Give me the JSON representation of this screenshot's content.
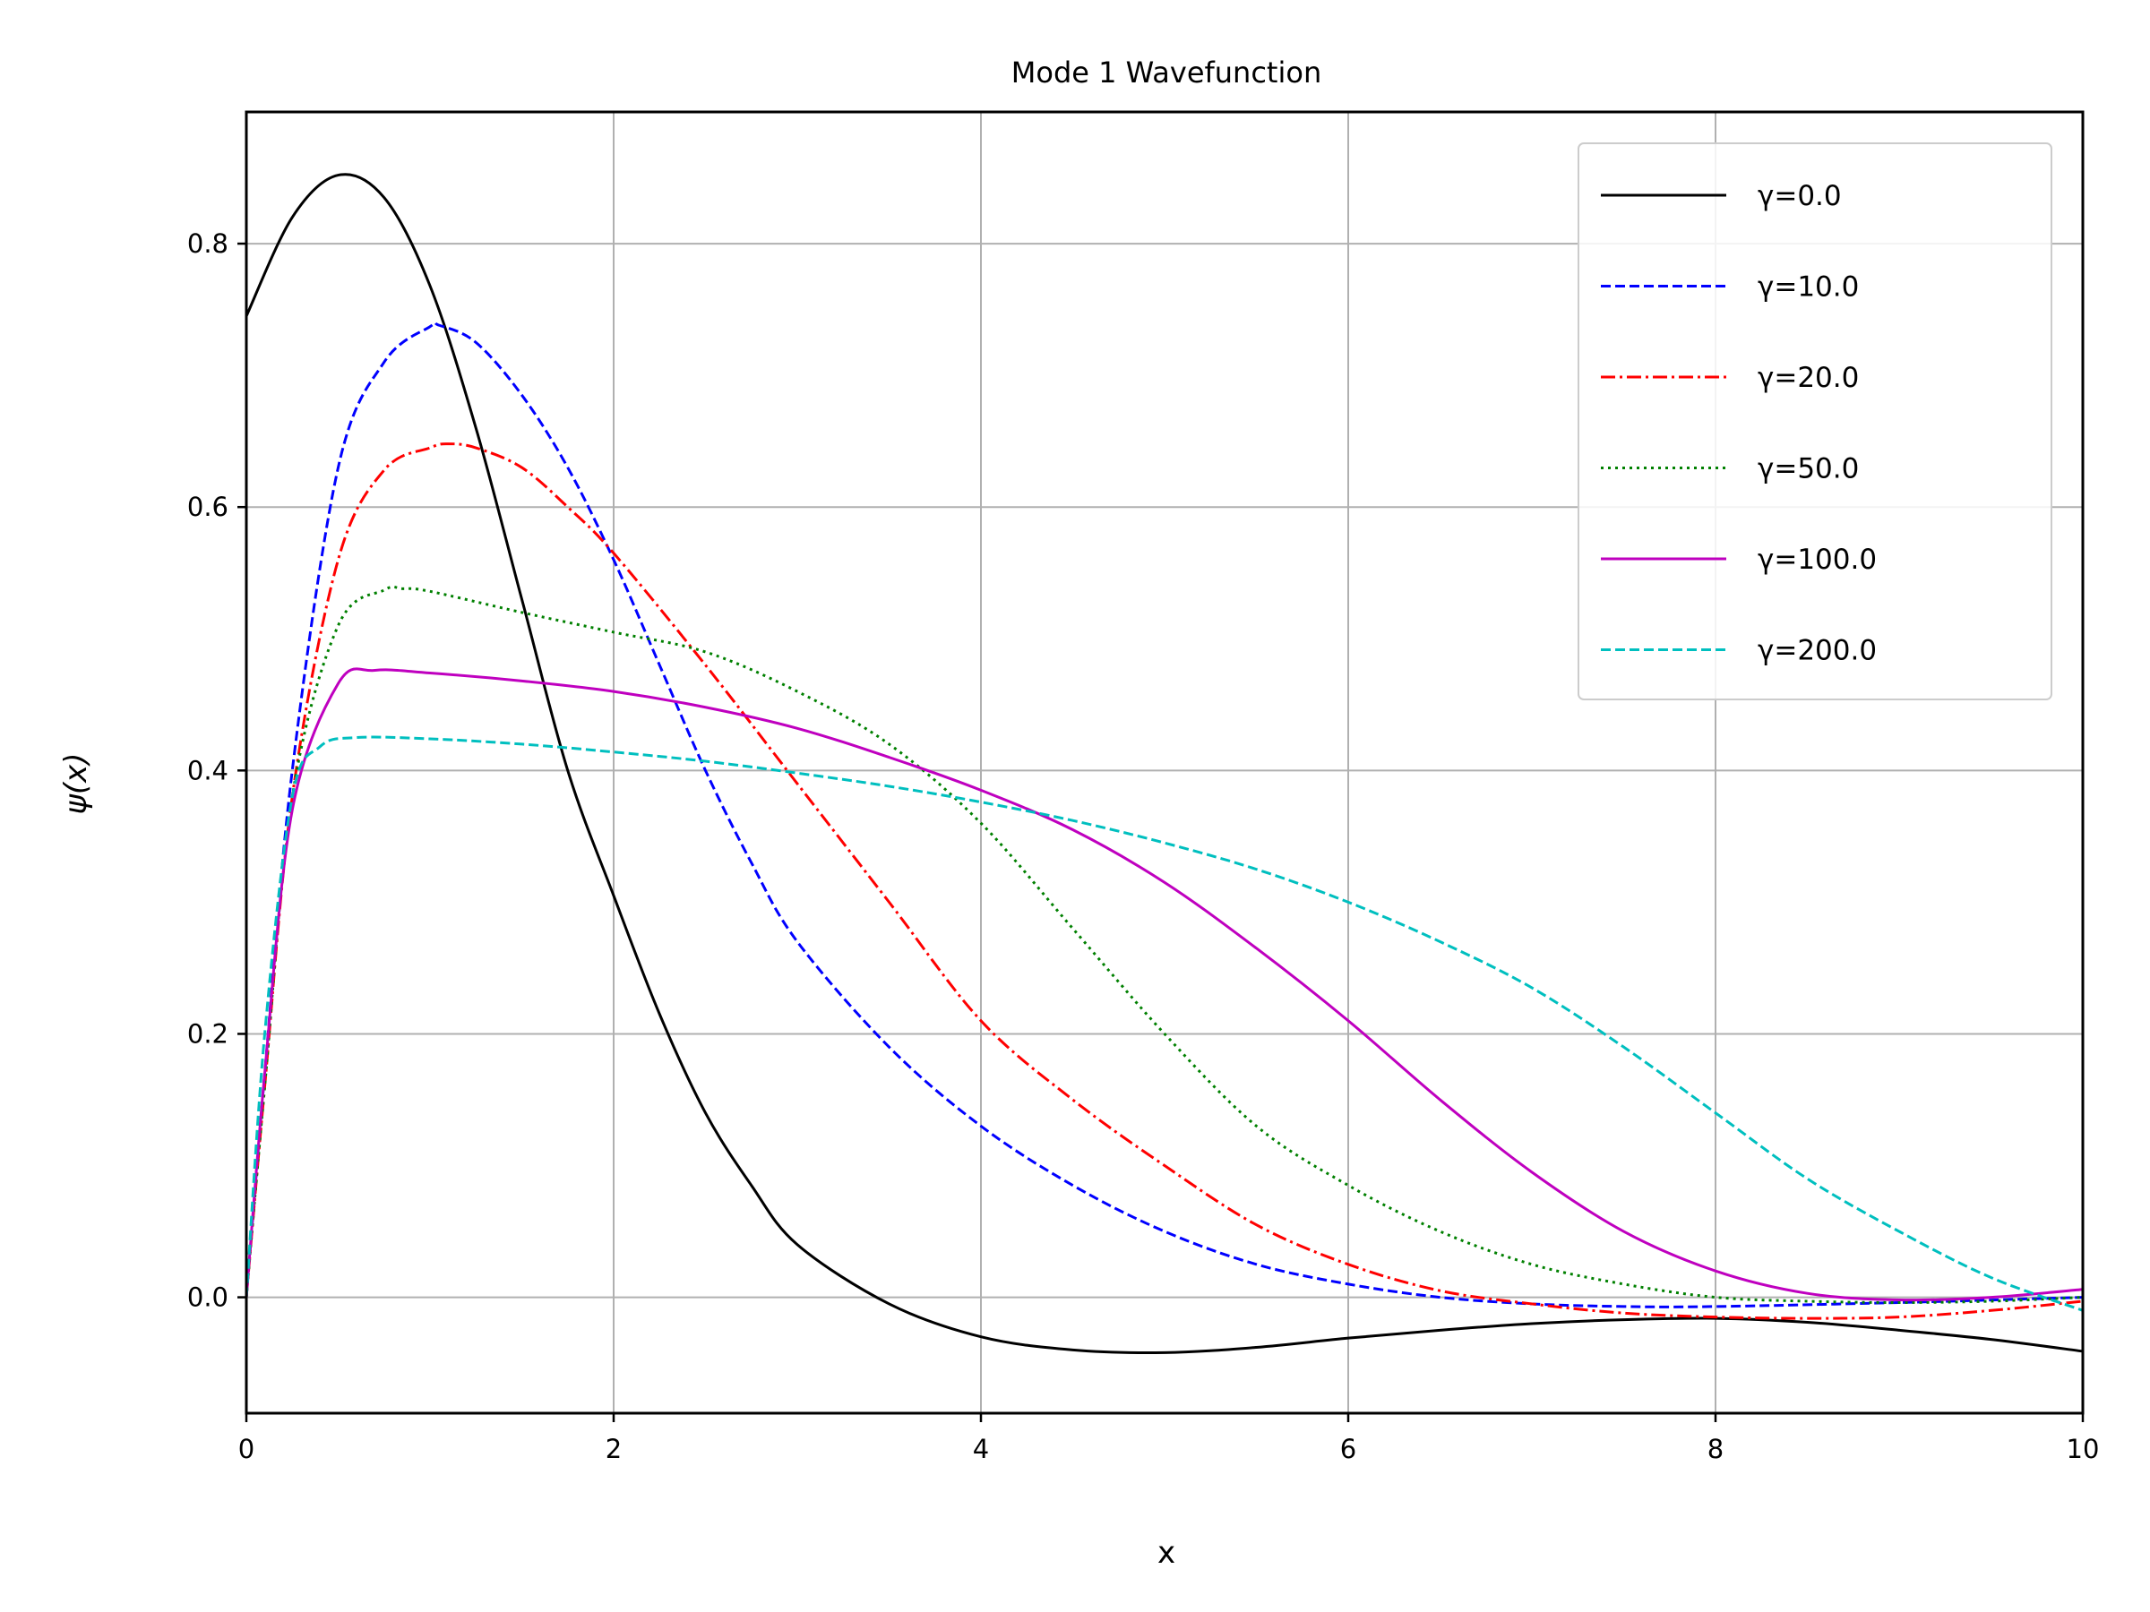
{
  "chart_data": {
    "type": "line",
    "title": "Mode 1 Wavefunction",
    "xlabel": "x",
    "ylabel": "ψ(x)",
    "xlim": [
      0,
      10
    ],
    "ylim": [
      -0.088,
      0.9
    ],
    "xticks": [
      0,
      2,
      4,
      6,
      8,
      10
    ],
    "xtick_labels": [
      "0",
      "2",
      "4",
      "6",
      "8",
      "10"
    ],
    "yticks": [
      0.0,
      0.2,
      0.4,
      0.6,
      0.8
    ],
    "ytick_labels": [
      "0.0",
      "0.2",
      "0.4",
      "0.6",
      "0.8"
    ],
    "grid": true,
    "legend_position": "top-right",
    "series": [
      {
        "name": "γ=0.0",
        "color": "#000000",
        "dash": "solid",
        "x": [
          0,
          0.25,
          0.5,
          0.75,
          1.0,
          1.25,
          1.5,
          1.75,
          2.0,
          2.25,
          2.5,
          2.75,
          3.0,
          3.5,
          4.0,
          4.5,
          5.0,
          5.5,
          6.0,
          6.5,
          7.0,
          7.5,
          8.0,
          8.5,
          9.0,
          9.5,
          10.0
        ],
        "y": [
          0.745,
          0.82,
          0.852,
          0.835,
          0.768,
          0.66,
          0.53,
          0.4,
          0.305,
          0.215,
          0.14,
          0.085,
          0.04,
          -0.005,
          -0.03,
          -0.04,
          -0.042,
          -0.038,
          -0.031,
          -0.025,
          -0.02,
          -0.017,
          -0.016,
          -0.019,
          -0.025,
          -0.032,
          -0.041
        ]
      },
      {
        "name": "γ=10.0",
        "color": "#0000ff",
        "dash": "dashed",
        "x": [
          0,
          0.1,
          0.25,
          0.5,
          0.75,
          1.0,
          1.05,
          1.25,
          1.5,
          1.75,
          2.0,
          2.25,
          2.5,
          2.75,
          3.0,
          3.5,
          4.0,
          4.5,
          5.0,
          5.5,
          6.0,
          6.5,
          7.0,
          7.5,
          8.0,
          9.0,
          10.0
        ],
        "y": [
          0.0,
          0.17,
          0.4,
          0.63,
          0.71,
          0.737,
          0.738,
          0.725,
          0.685,
          0.63,
          0.56,
          0.48,
          0.4,
          0.33,
          0.27,
          0.19,
          0.13,
          0.085,
          0.05,
          0.025,
          0.01,
          0.0,
          -0.005,
          -0.007,
          -0.007,
          -0.004,
          0.0
        ]
      },
      {
        "name": "γ=20.0",
        "color": "#ff0000",
        "dash": "dashdot",
        "x": [
          0,
          0.1,
          0.25,
          0.5,
          0.75,
          1.0,
          1.1,
          1.25,
          1.5,
          1.75,
          2.0,
          2.5,
          3.0,
          3.5,
          4.0,
          4.5,
          5.0,
          5.5,
          6.0,
          6.5,
          7.0,
          7.5,
          8.0,
          8.5,
          9.0,
          9.5,
          10.0
        ],
        "y": [
          0.0,
          0.16,
          0.38,
          0.56,
          0.628,
          0.645,
          0.648,
          0.645,
          0.63,
          0.6,
          0.565,
          0.48,
          0.39,
          0.3,
          0.21,
          0.15,
          0.1,
          0.055,
          0.025,
          0.005,
          -0.005,
          -0.012,
          -0.015,
          -0.016,
          -0.015,
          -0.01,
          -0.003
        ]
      },
      {
        "name": "γ=50.0",
        "color": "#008000",
        "dash": "dotted",
        "x": [
          0,
          0.1,
          0.25,
          0.5,
          0.75,
          0.85,
          1.0,
          1.5,
          2.0,
          2.5,
          3.0,
          3.5,
          4.0,
          4.5,
          5.0,
          5.5,
          6.0,
          6.5,
          7.0,
          7.5,
          8.0,
          8.5,
          9.0,
          9.5,
          10.0
        ],
        "y": [
          0.0,
          0.16,
          0.38,
          0.51,
          0.537,
          0.538,
          0.536,
          0.52,
          0.505,
          0.49,
          0.46,
          0.42,
          0.36,
          0.28,
          0.2,
          0.13,
          0.085,
          0.05,
          0.025,
          0.01,
          0.0,
          -0.003,
          -0.004,
          -0.003,
          0.0
        ]
      },
      {
        "name": "γ=100.0",
        "color": "#bf00bf",
        "dash": "solid",
        "x": [
          0,
          0.1,
          0.25,
          0.5,
          0.7,
          1.0,
          1.5,
          2.0,
          2.5,
          3.0,
          3.5,
          4.0,
          4.5,
          5.0,
          5.5,
          6.0,
          6.5,
          7.0,
          7.5,
          8.0,
          8.5,
          9.0,
          9.5,
          10.0
        ],
        "y": [
          0.0,
          0.17,
          0.37,
          0.466,
          0.476,
          0.474,
          0.468,
          0.46,
          0.448,
          0.432,
          0.41,
          0.385,
          0.355,
          0.315,
          0.265,
          0.21,
          0.15,
          0.095,
          0.05,
          0.02,
          0.003,
          -0.002,
          0.0,
          0.006
        ]
      },
      {
        "name": "γ=200.0",
        "color": "#00bfbf",
        "dash": "dashed",
        "x": [
          0,
          0.1,
          0.25,
          0.4,
          0.6,
          1.0,
          1.5,
          2.0,
          2.5,
          3.0,
          3.5,
          4.0,
          4.5,
          5.0,
          5.5,
          6.0,
          6.5,
          7.0,
          7.5,
          8.0,
          8.5,
          9.0,
          9.5,
          10.0
        ],
        "y": [
          0.0,
          0.2,
          0.38,
          0.418,
          0.425,
          0.424,
          0.42,
          0.414,
          0.407,
          0.398,
          0.388,
          0.376,
          0.362,
          0.345,
          0.325,
          0.3,
          0.27,
          0.235,
          0.19,
          0.14,
          0.09,
          0.05,
          0.015,
          -0.01
        ]
      }
    ]
  }
}
